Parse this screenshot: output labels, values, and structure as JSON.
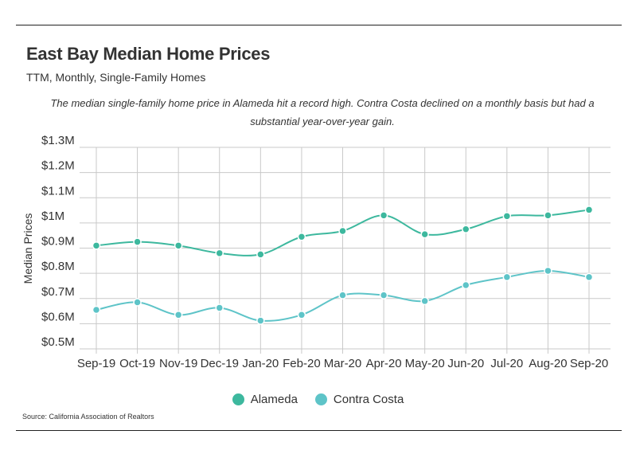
{
  "title": "East Bay Median Home Prices",
  "subtitle": "TTM, Monthly, Single-Family Homes",
  "note": "The median single-family home price in Alameda hit a record high. Contra Costa declined on a monthly basis but had a substantial year-over-year gain.",
  "source": "Source:  California Association of Realtors",
  "chart_data": {
    "type": "line",
    "ylabel": "Median Prices",
    "xlabel": "",
    "ylim": [
      0.5,
      1.3
    ],
    "y_ticks": [
      0.5,
      0.6,
      0.7,
      0.8,
      0.9,
      1.0,
      1.1,
      1.2,
      1.3
    ],
    "y_tick_labels": [
      "$0.5M",
      "$0.6M",
      "$0.7M",
      "$0.8M",
      "$0.9M",
      "$1M",
      "$1.1M",
      "$1.2M",
      "$1.3M"
    ],
    "categories": [
      "Sep-19",
      "Oct-19",
      "Nov-19",
      "Dec-19",
      "Jan-20",
      "Feb-20",
      "Mar-20",
      "Apr-20",
      "May-20",
      "Jun-20",
      "Jul-20",
      "Aug-20",
      "Sep-20"
    ],
    "grid": true,
    "legend_position": "bottom-center",
    "series": [
      {
        "name": "Alameda",
        "color": "#3db89e",
        "values": [
          0.91,
          0.925,
          0.91,
          0.88,
          0.875,
          0.945,
          0.968,
          1.03,
          0.955,
          0.975,
          1.027,
          1.03,
          1.052
        ]
      },
      {
        "name": "Contra Costa",
        "color": "#5ec4c8",
        "values": [
          0.655,
          0.685,
          0.635,
          0.663,
          0.612,
          0.635,
          0.713,
          0.713,
          0.69,
          0.753,
          0.785,
          0.81,
          0.785
        ]
      }
    ]
  }
}
